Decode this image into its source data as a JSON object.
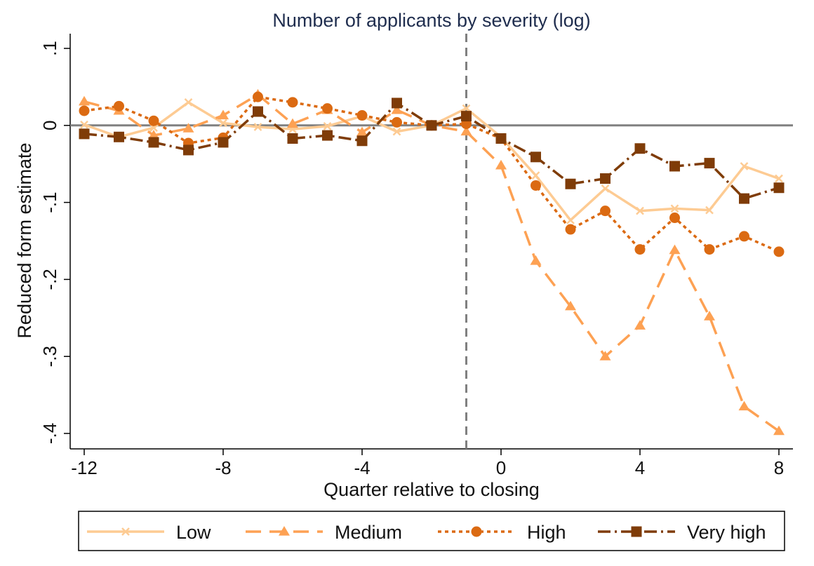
{
  "chart_data": {
    "type": "line",
    "title": "Number of applicants by severity (log)",
    "xlabel": "Quarter relative to closing",
    "ylabel": "Reduced form estimate",
    "xlim": [
      -12,
      8
    ],
    "ylim": [
      -0.4,
      0.1
    ],
    "xticks": [
      -12,
      -8,
      -4,
      0,
      4,
      8
    ],
    "xtick_labels": [
      "-12",
      "-8",
      "-4",
      "0",
      "4",
      "8"
    ],
    "yticks": [
      0.1,
      0,
      -0.1,
      -0.2,
      -0.3,
      -0.4
    ],
    "ytick_labels": [
      ".1",
      "0",
      "-.1",
      "-.2",
      "-.3",
      "-.4"
    ],
    "reference_lines": {
      "y": 0,
      "x": -1
    },
    "grid": false,
    "legend_position": "bottom",
    "x": [
      -12,
      -11,
      -10,
      -9,
      -8,
      -7,
      -6,
      -5,
      -4,
      -3,
      -2,
      -1,
      0,
      1,
      2,
      3,
      4,
      5,
      6,
      7,
      8
    ],
    "series": [
      {
        "name": "Low",
        "color": "#fdcb93",
        "marker": "x",
        "dash": "solid",
        "values": [
          0.001,
          -0.015,
          -0.003,
          0.03,
          0.003,
          -0.002,
          -0.005,
          -0.001,
          0.012,
          -0.008,
          0.0,
          0.022,
          -0.015,
          -0.065,
          -0.123,
          -0.082,
          -0.111,
          -0.108,
          -0.11,
          -0.053,
          -0.069
        ]
      },
      {
        "name": "Medium",
        "color": "#fda153",
        "marker": "triangle",
        "dash": "long-dash",
        "values": [
          0.031,
          0.019,
          -0.013,
          -0.004,
          0.013,
          0.04,
          0.002,
          0.02,
          -0.009,
          0.02,
          0.0,
          -0.008,
          -0.052,
          -0.176,
          -0.235,
          -0.3,
          -0.26,
          -0.162,
          -0.248,
          -0.365,
          -0.397
        ]
      },
      {
        "name": "High",
        "color": "#db6a12",
        "marker": "circle",
        "dash": "dot",
        "values": [
          0.019,
          0.025,
          0.006,
          -0.023,
          -0.016,
          0.037,
          0.03,
          0.022,
          0.013,
          0.004,
          0.0,
          0.002,
          -0.017,
          -0.078,
          -0.135,
          -0.111,
          -0.161,
          -0.12,
          -0.161,
          -0.144,
          -0.164
        ]
      },
      {
        "name": "Very high",
        "color": "#7f3c08",
        "marker": "square",
        "dash": "dash-dot",
        "values": [
          -0.011,
          -0.015,
          -0.022,
          -0.032,
          -0.022,
          0.018,
          -0.017,
          -0.013,
          -0.02,
          0.029,
          0.0,
          0.012,
          -0.017,
          -0.041,
          -0.076,
          -0.069,
          -0.03,
          -0.053,
          -0.049,
          -0.095,
          -0.081
        ]
      }
    ]
  }
}
